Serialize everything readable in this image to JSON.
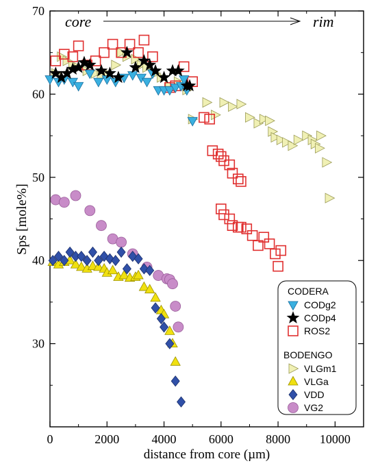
{
  "chart_data": {
    "type": "scatter",
    "xlabel": "distance from core (µm)",
    "ylabel": "Sps [mole%]",
    "xlim": [
      0,
      11000
    ],
    "ylim": [
      20,
      70
    ],
    "xticks": [
      0,
      2000,
      4000,
      6000,
      8000,
      10000
    ],
    "yticks": [
      30,
      40,
      50,
      60,
      70
    ],
    "annotation": {
      "left": "core",
      "right": "rim"
    },
    "legend": {
      "placement": "bottom-right",
      "groups": [
        {
          "title": "CODERA",
          "entries": [
            "CODg2",
            "CODp4",
            "ROS2"
          ]
        },
        {
          "title": "BODENGO",
          "entries": [
            "VLGm1",
            "VLGa",
            "VDD",
            "VG2"
          ]
        }
      ]
    },
    "series": [
      {
        "name": "VLGm1",
        "marker": "triangle-right",
        "fill": "#f0f0b4",
        "stroke": "#9a9a55",
        "points": [
          [
            200,
            62.5
          ],
          [
            400,
            64.5
          ],
          [
            600,
            64
          ],
          [
            800,
            63.5
          ],
          [
            1000,
            63.2
          ],
          [
            1300,
            62.8
          ],
          [
            1600,
            62.5
          ],
          [
            1800,
            62.2
          ],
          [
            2000,
            62.5
          ],
          [
            2300,
            63.5
          ],
          [
            2500,
            65
          ],
          [
            2700,
            64.5
          ],
          [
            3000,
            64.2
          ],
          [
            3200,
            63.5
          ],
          [
            3400,
            63.2
          ],
          [
            3700,
            62.5
          ],
          [
            3900,
            62
          ],
          [
            4200,
            61
          ],
          [
            4500,
            61.5
          ],
          [
            4800,
            60.5
          ],
          [
            5000,
            57
          ],
          [
            5500,
            59
          ],
          [
            5800,
            57.5
          ],
          [
            6100,
            59
          ],
          [
            6400,
            58.5
          ],
          [
            6700,
            58.8
          ],
          [
            7000,
            57.2
          ],
          [
            7300,
            56.5
          ],
          [
            7500,
            57
          ],
          [
            7700,
            56.8
          ],
          [
            7800,
            55.5
          ],
          [
            7900,
            54.8
          ],
          [
            8100,
            54.5
          ],
          [
            8300,
            54.2
          ],
          [
            8500,
            53.8
          ],
          [
            8700,
            54.5
          ],
          [
            9000,
            55
          ],
          [
            9200,
            54.5
          ],
          [
            9300,
            54
          ],
          [
            9500,
            55
          ],
          [
            9700,
            51.8
          ],
          [
            9800,
            47.5
          ],
          [
            9450,
            53.5
          ]
        ]
      },
      {
        "name": "ROS2",
        "marker": "square",
        "fill": "none",
        "stroke": "#e03030",
        "points": [
          [
            200,
            64
          ],
          [
            500,
            64.8
          ],
          [
            800,
            64.5
          ],
          [
            1000,
            65.8
          ],
          [
            1300,
            63.5
          ],
          [
            1600,
            64
          ],
          [
            1900,
            65
          ],
          [
            2200,
            66
          ],
          [
            2500,
            65
          ],
          [
            2800,
            66
          ],
          [
            3100,
            65
          ],
          [
            3300,
            66.5
          ],
          [
            3600,
            64.5
          ],
          [
            4200,
            60.8
          ],
          [
            4400,
            61
          ],
          [
            4700,
            63.3
          ],
          [
            5000,
            61.5
          ],
          [
            5400,
            57.2
          ],
          [
            5600,
            57
          ],
          [
            5700,
            53.2
          ],
          [
            5900,
            52.8
          ],
          [
            6000,
            52.5
          ],
          [
            6100,
            52
          ],
          [
            6300,
            51.5
          ],
          [
            6400,
            50.5
          ],
          [
            6600,
            49.8
          ],
          [
            6700,
            49.5
          ],
          [
            6000,
            46.2
          ],
          [
            6100,
            45.5
          ],
          [
            6300,
            45
          ],
          [
            6400,
            44.2
          ],
          [
            6600,
            44
          ],
          [
            6700,
            44
          ],
          [
            6900,
            43.8
          ],
          [
            7100,
            43
          ],
          [
            7300,
            41.8
          ],
          [
            7500,
            42.8
          ],
          [
            7700,
            42
          ],
          [
            7900,
            40.8
          ],
          [
            8000,
            39.3
          ],
          [
            8100,
            41.2
          ]
        ]
      },
      {
        "name": "CODg2",
        "marker": "triangle-down",
        "fill": "#3ab0e0",
        "stroke": "#1a6fa0",
        "points": [
          [
            0,
            61.8
          ],
          [
            300,
            61.5
          ],
          [
            500,
            61.8
          ],
          [
            800,
            61.5
          ],
          [
            1000,
            61
          ],
          [
            1400,
            62.5
          ],
          [
            1700,
            61.5
          ],
          [
            2000,
            61.8
          ],
          [
            2300,
            61.5
          ],
          [
            2600,
            62
          ],
          [
            2900,
            62.3
          ],
          [
            3200,
            62
          ],
          [
            3400,
            61.5
          ],
          [
            3600,
            62.5
          ],
          [
            3800,
            60.5
          ],
          [
            4000,
            60.5
          ],
          [
            4200,
            60.5
          ],
          [
            4400,
            60.8
          ],
          [
            4600,
            61
          ],
          [
            4800,
            60.5
          ],
          [
            5000,
            56.8
          ],
          [
            4700,
            61.8
          ]
        ]
      },
      {
        "name": "CODp4",
        "marker": "star",
        "fill": "#000000",
        "stroke": "#000000",
        "points": [
          [
            200,
            62.5
          ],
          [
            400,
            62
          ],
          [
            600,
            62.5
          ],
          [
            800,
            63
          ],
          [
            1000,
            63.2
          ],
          [
            1200,
            63.8
          ],
          [
            1400,
            63.5
          ],
          [
            1800,
            62.8
          ],
          [
            2100,
            62.5
          ],
          [
            2400,
            62
          ],
          [
            2700,
            65
          ],
          [
            3000,
            63.2
          ],
          [
            3300,
            64
          ],
          [
            3500,
            63.5
          ],
          [
            3700,
            62.8
          ],
          [
            4000,
            62
          ],
          [
            4300,
            62.8
          ],
          [
            4500,
            62.8
          ],
          [
            4800,
            61
          ],
          [
            4900,
            61
          ]
        ]
      },
      {
        "name": "VG2",
        "marker": "circle",
        "fill": "#c88cc8",
        "stroke": "#9a5e9a",
        "points": [
          [
            200,
            47.3
          ],
          [
            500,
            47
          ],
          [
            900,
            47.8
          ],
          [
            1400,
            46
          ],
          [
            1800,
            44.2
          ],
          [
            2200,
            42.6
          ],
          [
            2500,
            42.2
          ],
          [
            2900,
            40.8
          ],
          [
            3400,
            39.2
          ],
          [
            3800,
            38.2
          ],
          [
            4100,
            37.8
          ],
          [
            4200,
            37.7
          ],
          [
            4300,
            37.2
          ],
          [
            4400,
            34.5
          ],
          [
            4500,
            32
          ]
        ]
      },
      {
        "name": "VLGa",
        "marker": "triangle-up",
        "fill": "#f0e010",
        "stroke": "#9a9000",
        "points": [
          [
            100,
            39.8
          ],
          [
            300,
            39.5
          ],
          [
            500,
            39.8
          ],
          [
            700,
            40
          ],
          [
            900,
            39.5
          ],
          [
            1100,
            39.2
          ],
          [
            1300,
            39
          ],
          [
            1500,
            39.3
          ],
          [
            1700,
            39.2
          ],
          [
            1900,
            39
          ],
          [
            2000,
            38.5
          ],
          [
            2200,
            38.8
          ],
          [
            2400,
            38
          ],
          [
            2600,
            38.2
          ],
          [
            2800,
            37.9
          ],
          [
            3000,
            38
          ],
          [
            3100,
            38.2
          ],
          [
            3300,
            36.8
          ],
          [
            3500,
            36.5
          ],
          [
            3700,
            35.5
          ],
          [
            3900,
            34
          ],
          [
            4000,
            33.5
          ],
          [
            4200,
            31.5
          ],
          [
            4400,
            27.8
          ],
          [
            4300,
            30
          ]
        ]
      },
      {
        "name": "VDD",
        "marker": "diamond",
        "fill": "#3050a8",
        "stroke": "#1a2f6a",
        "points": [
          [
            100,
            40
          ],
          [
            300,
            40.5
          ],
          [
            500,
            40
          ],
          [
            700,
            41
          ],
          [
            900,
            40.5
          ],
          [
            1100,
            40.5
          ],
          [
            1300,
            40
          ],
          [
            1500,
            41
          ],
          [
            1700,
            40
          ],
          [
            1900,
            40.5
          ],
          [
            2100,
            40.2
          ],
          [
            2300,
            40
          ],
          [
            2500,
            41
          ],
          [
            2700,
            39
          ],
          [
            2900,
            40.5
          ],
          [
            3100,
            40.2
          ],
          [
            3300,
            39
          ],
          [
            3500,
            38.8
          ],
          [
            3700,
            34.3
          ],
          [
            3900,
            33
          ],
          [
            4000,
            32
          ],
          [
            4200,
            30
          ],
          [
            4400,
            25.5
          ],
          [
            4600,
            23
          ]
        ]
      }
    ]
  }
}
